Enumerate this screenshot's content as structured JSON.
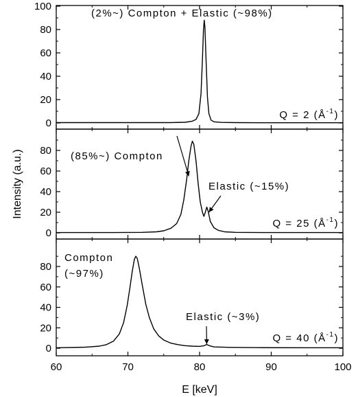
{
  "chart_data": {
    "type": "line",
    "xlabel": "E [keV]",
    "ylabel": "Intensity (a.u.)",
    "xlim": [
      60,
      100
    ],
    "x_ticks": [
      60,
      70,
      80,
      90,
      100
    ],
    "panels": [
      {
        "q_label": "Q = 2 (Å",
        "q_label_sup": "-1",
        "q_label_end": ")",
        "ylim": [
          0,
          100
        ],
        "y_ticks": [
          0,
          20,
          40,
          60,
          80,
          100
        ],
        "annotations": [
          {
            "text": "(2%~) Compton + Elastic (~98%)",
            "arrow_to": null
          }
        ],
        "series": [
          {
            "points": [
              [
                60,
                0.3
              ],
              [
                70,
                0.3
              ],
              [
                76,
                0.3
              ],
              [
                78,
                0.6
              ],
              [
                79,
                1.5
              ],
              [
                79.5,
                3
              ],
              [
                79.9,
                8
              ],
              [
                80.2,
                25
              ],
              [
                80.4,
                55
              ],
              [
                80.55,
                80
              ],
              [
                80.65,
                88
              ],
              [
                80.75,
                82
              ],
              [
                80.9,
                55
              ],
              [
                81.1,
                22
              ],
              [
                81.3,
                8
              ],
              [
                81.6,
                2.5
              ],
              [
                82,
                1
              ],
              [
                83,
                0.5
              ],
              [
                85,
                0.3
              ],
              [
                90,
                0.2
              ],
              [
                100,
                0.2
              ]
            ]
          }
        ]
      },
      {
        "q_label": "Q = 25 (Å",
        "q_label_sup": "-1",
        "q_label_end": ")",
        "ylim": [
          0,
          100
        ],
        "y_ticks": [
          0,
          20,
          40,
          60,
          80
        ],
        "annotations": [
          {
            "text": "(85%~) Compton",
            "arrow_to": [
              78.5,
              55
            ]
          },
          {
            "text": "Elastic (~15%)",
            "arrow_to": [
              81.3,
              20
            ]
          }
        ],
        "series": [
          {
            "points": [
              [
                60,
                0.3
              ],
              [
                68,
                0.3
              ],
              [
                72,
                0.5
              ],
              [
                74,
                1
              ],
              [
                75,
                2
              ],
              [
                76,
                4.5
              ],
              [
                76.8,
                9
              ],
              [
                77.4,
                18
              ],
              [
                77.8,
                32
              ],
              [
                78.2,
                52
              ],
              [
                78.5,
                70
              ],
              [
                78.8,
                84
              ],
              [
                79,
                89
              ],
              [
                79.2,
                86
              ],
              [
                79.5,
                70
              ],
              [
                79.8,
                48
              ],
              [
                80.1,
                30
              ],
              [
                80.4,
                20
              ],
              [
                80.6,
                16
              ],
              [
                80.8,
                20
              ],
              [
                81,
                25
              ],
              [
                81.2,
                21
              ],
              [
                81.5,
                11
              ],
              [
                82,
                5
              ],
              [
                82.6,
                2.5
              ],
              [
                83.5,
                1
              ],
              [
                85,
                0.5
              ],
              [
                90,
                0.3
              ],
              [
                100,
                0.3
              ]
            ]
          }
        ]
      },
      {
        "q_label": "Q = 40 (Å",
        "q_label_sup": "-1",
        "q_label_end": ")",
        "ylim": [
          0,
          100
        ],
        "y_ticks": [
          0,
          20,
          40,
          60,
          80
        ],
        "annotations": [
          {
            "text": "Compton",
            "arrow_to": null
          },
          {
            "text": "(~97%)",
            "arrow_to": null
          },
          {
            "text": "Elastic (~3%)",
            "arrow_to": [
              81,
              4
            ]
          }
        ],
        "series": [
          {
            "points": [
              [
                60,
                0.5
              ],
              [
                64,
                1
              ],
              [
                66,
                2
              ],
              [
                67,
                3.5
              ],
              [
                68,
                7
              ],
              [
                68.8,
                14
              ],
              [
                69.4,
                25
              ],
              [
                69.9,
                42
              ],
              [
                70.3,
                60
              ],
              [
                70.6,
                75
              ],
              [
                70.9,
                87
              ],
              [
                71.1,
                90
              ],
              [
                71.3,
                88
              ],
              [
                71.6,
                78
              ],
              [
                72,
                62
              ],
              [
                72.5,
                43
              ],
              [
                73,
                30
              ],
              [
                73.6,
                19
              ],
              [
                74.3,
                12
              ],
              [
                75,
                8
              ],
              [
                76,
                5
              ],
              [
                77,
                3.5
              ],
              [
                78,
                2.5
              ],
              [
                79,
                2
              ],
              [
                80,
                1.8
              ],
              [
                80.6,
                2.4
              ],
              [
                81,
                3.6
              ],
              [
                81.4,
                2.4
              ],
              [
                82,
                1.3
              ],
              [
                84,
                0.9
              ],
              [
                88,
                0.6
              ],
              [
                95,
                0.5
              ],
              [
                100,
                0.5
              ]
            ]
          }
        ]
      }
    ]
  }
}
